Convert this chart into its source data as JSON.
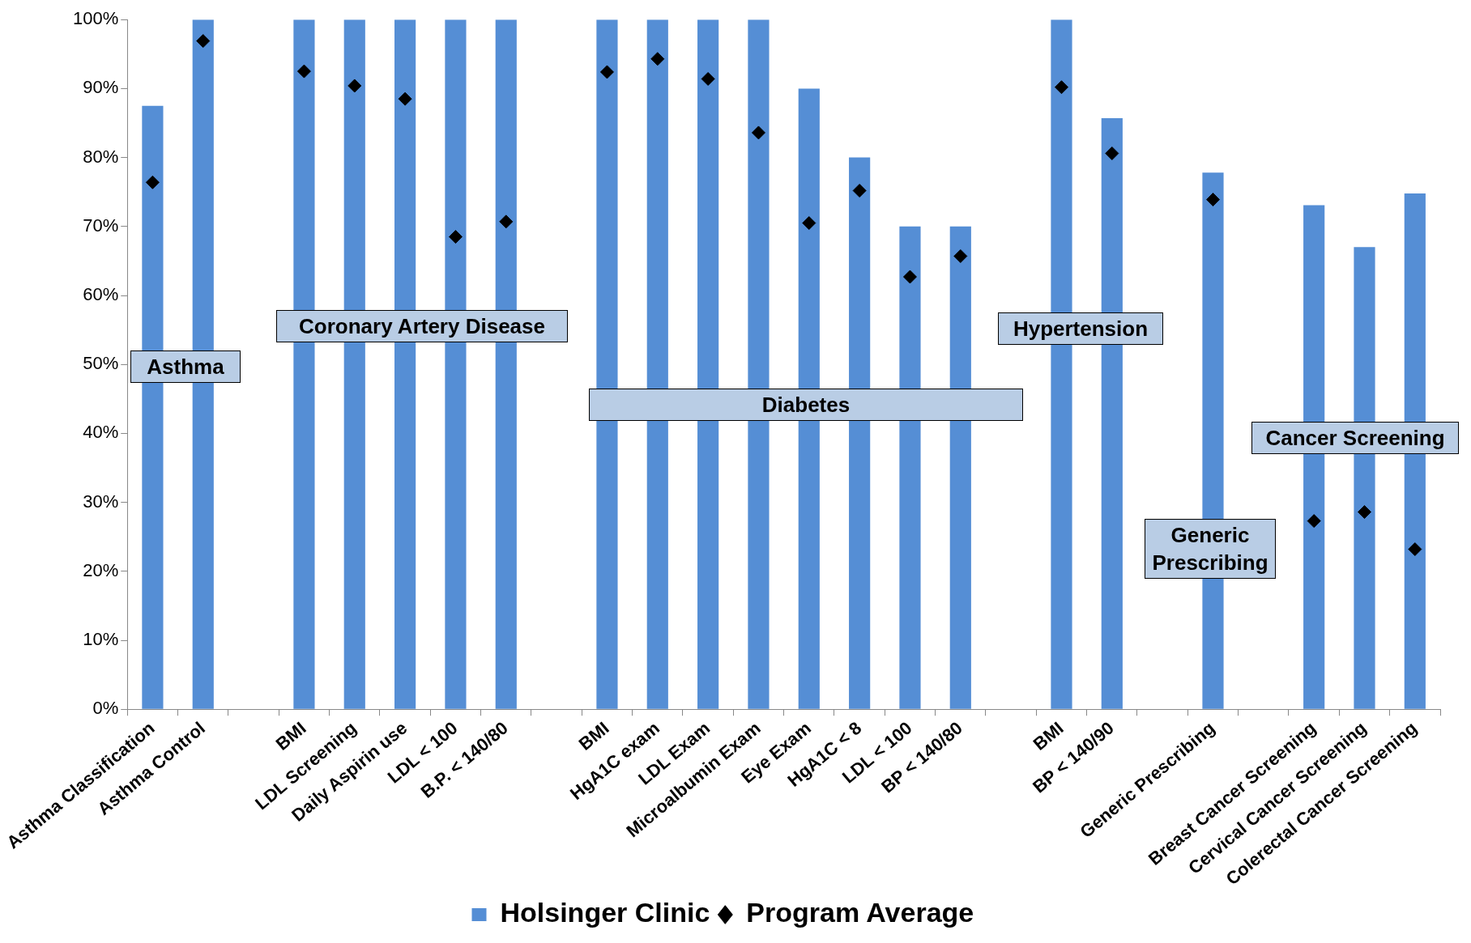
{
  "chart_data": {
    "type": "bar",
    "categories": [
      "Asthma Classification",
      "Asthma Control",
      null,
      "BMI",
      "LDL Screening",
      "Daily Aspirin use",
      "LDL < 100",
      "B.P. < 140/80",
      null,
      "BMI",
      "HgA1C exam",
      "LDL Exam",
      "Microalbumin Exam",
      "Eye Exam",
      "HgA1C < 8",
      "LDL < 100",
      "BP < 140/80",
      null,
      "BMI",
      "BP < 140/90",
      null,
      "Generic Prescribing",
      null,
      "Breast Cancer Screening",
      "Cervical Cancer Screening",
      "Colerectal Cancer Screening"
    ],
    "series": [
      {
        "name": "Holsinger Clinic",
        "color": "#558ed5",
        "values": [
          87.5,
          100,
          null,
          100,
          100,
          100,
          100,
          100,
          null,
          100,
          100,
          100,
          100,
          90,
          80,
          70,
          70,
          null,
          100,
          85.7,
          null,
          77.8,
          null,
          73.1,
          67,
          74.8
        ]
      },
      {
        "name": "Program Average",
        "type": "scatter",
        "color": "#000000",
        "values": [
          76.4,
          96.9,
          null,
          92.5,
          90.4,
          88.5,
          68.5,
          70.7,
          null,
          92.4,
          94.3,
          91.4,
          83.6,
          70.5,
          75.2,
          62.7,
          65.7,
          null,
          90.2,
          80.6,
          null,
          73.9,
          null,
          27.3,
          28.6,
          23.2
        ]
      }
    ],
    "ylim": [
      0,
      100
    ],
    "yticks": [
      {
        "value": 0,
        "label": "0%"
      },
      {
        "value": 10,
        "label": "10%"
      },
      {
        "value": 20,
        "label": "20%"
      },
      {
        "value": 30,
        "label": "30%"
      },
      {
        "value": 40,
        "label": "40%"
      },
      {
        "value": 50,
        "label": "50%"
      },
      {
        "value": 60,
        "label": "60%"
      },
      {
        "value": 70,
        "label": "70%"
      },
      {
        "value": 80,
        "label": "80%"
      },
      {
        "value": 90,
        "label": "90%"
      },
      {
        "value": 100,
        "label": "100%"
      }
    ],
    "annotations": [
      "Asthma",
      "Coronary Artery Disease",
      "Diabetes",
      "Hypertension",
      "Generic Prescribing",
      "Cancer Screening"
    ],
    "marker": "diamond",
    "grid": false,
    "legend": "bottom"
  }
}
